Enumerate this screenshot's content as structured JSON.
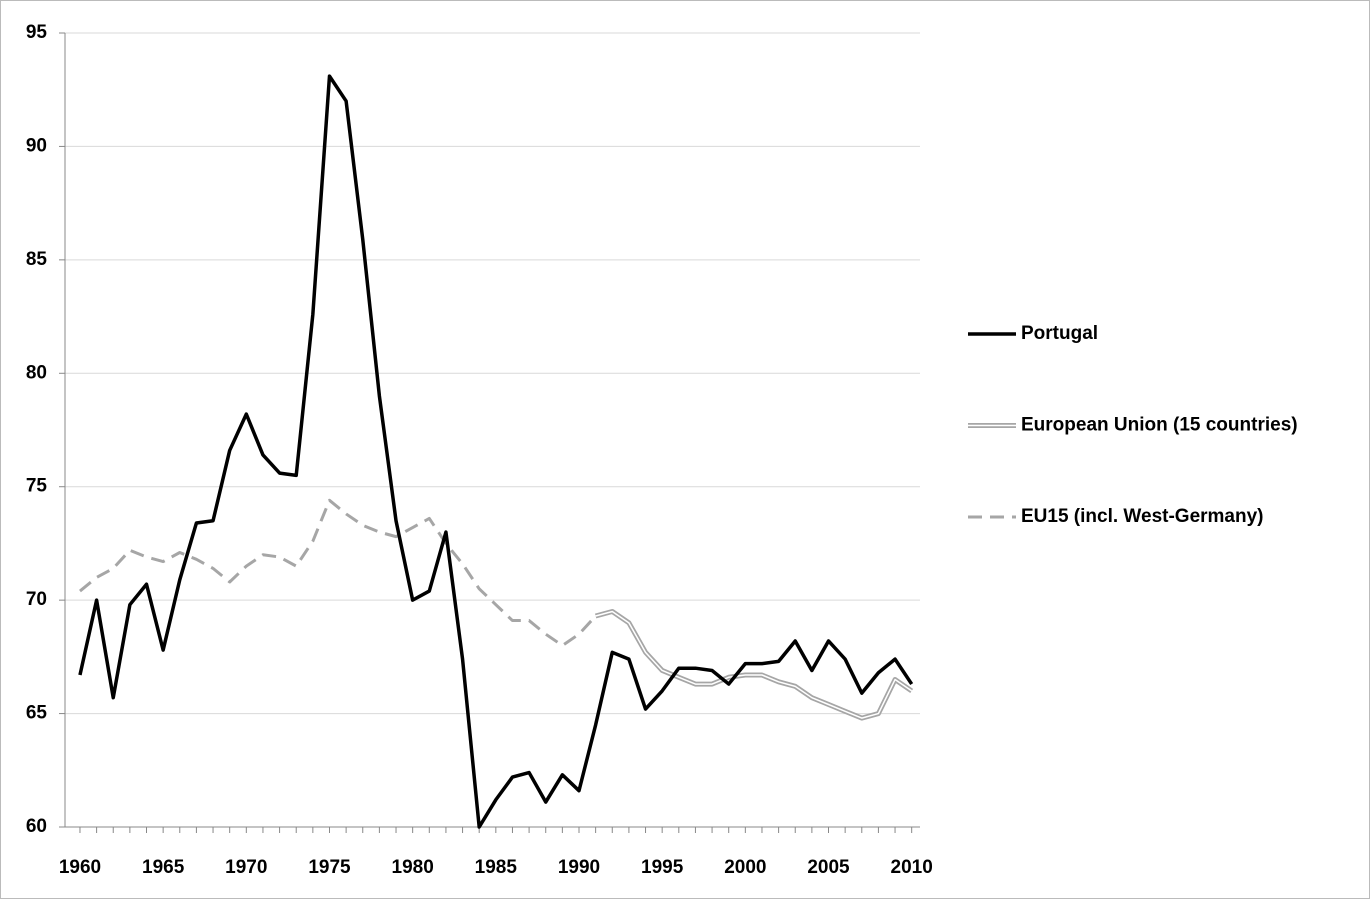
{
  "chart_data": {
    "type": "line",
    "x": [
      1960,
      1961,
      1962,
      1963,
      1964,
      1965,
      1966,
      1967,
      1968,
      1969,
      1970,
      1971,
      1972,
      1973,
      1974,
      1975,
      1976,
      1977,
      1978,
      1979,
      1980,
      1981,
      1982,
      1983,
      1984,
      1985,
      1986,
      1987,
      1988,
      1989,
      1990,
      1991,
      1992,
      1993,
      1994,
      1995,
      1996,
      1997,
      1998,
      1999,
      2000,
      2001,
      2002,
      2003,
      2004,
      2005,
      2006,
      2007,
      2008,
      2009,
      2010
    ],
    "series": [
      {
        "name": "Portugal",
        "color": "#000000",
        "line_style": "solid",
        "values": [
          66.7,
          70.0,
          65.7,
          69.8,
          70.7,
          67.8,
          70.9,
          73.4,
          73.5,
          76.6,
          78.2,
          76.4,
          75.6,
          75.5,
          82.6,
          93.1,
          92.0,
          85.9,
          79.0,
          73.5,
          70.0,
          70.4,
          73.0,
          67.4,
          60.0,
          61.2,
          62.2,
          62.4,
          61.1,
          62.3,
          61.6,
          64.5,
          67.7,
          67.4,
          65.2,
          66.0,
          67.0,
          67.0,
          66.9,
          66.3,
          67.2,
          67.2,
          67.3,
          68.2,
          66.9,
          68.2,
          67.4,
          65.9,
          66.8,
          67.4,
          66.3
        ]
      },
      {
        "name": "European Union (15 countries)",
        "color": "#a6a6a6",
        "line_style": "double",
        "values": [
          null,
          null,
          null,
          null,
          null,
          null,
          null,
          null,
          null,
          null,
          null,
          null,
          null,
          null,
          null,
          null,
          null,
          null,
          null,
          null,
          null,
          null,
          null,
          null,
          null,
          null,
          null,
          null,
          null,
          null,
          null,
          69.3,
          69.5,
          69.0,
          67.7,
          66.9,
          66.6,
          66.3,
          66.3,
          66.6,
          66.7,
          66.7,
          66.4,
          66.2,
          65.7,
          65.4,
          65.1,
          64.8,
          65.0,
          66.5,
          66.0
        ]
      },
      {
        "name": "EU15 (incl. West-Germany)",
        "color": "#a6a6a6",
        "line_style": "dashed",
        "values": [
          70.4,
          71.0,
          71.4,
          72.2,
          71.9,
          71.7,
          72.1,
          71.8,
          71.4,
          70.8,
          71.5,
          72.0,
          71.9,
          71.5,
          72.6,
          74.4,
          73.8,
          73.3,
          73.0,
          72.8,
          73.2,
          73.6,
          72.5,
          71.6,
          70.5,
          69.8,
          69.1,
          69.1,
          68.5,
          68.0,
          68.5,
          69.3,
          null,
          null,
          null,
          null,
          null,
          null,
          null,
          null,
          null,
          null,
          null,
          null,
          null,
          null,
          null,
          null,
          null,
          null,
          null
        ]
      }
    ],
    "xlim": [
      1959.1,
      2010.5
    ],
    "xticks": [
      1960,
      1965,
      1970,
      1975,
      1980,
      1985,
      1990,
      1995,
      2000,
      2005,
      2010
    ],
    "ylim": [
      60,
      95
    ],
    "yticks": [
      60,
      65,
      70,
      75,
      80,
      85,
      90,
      95
    ],
    "grid": true,
    "legend": "right"
  }
}
